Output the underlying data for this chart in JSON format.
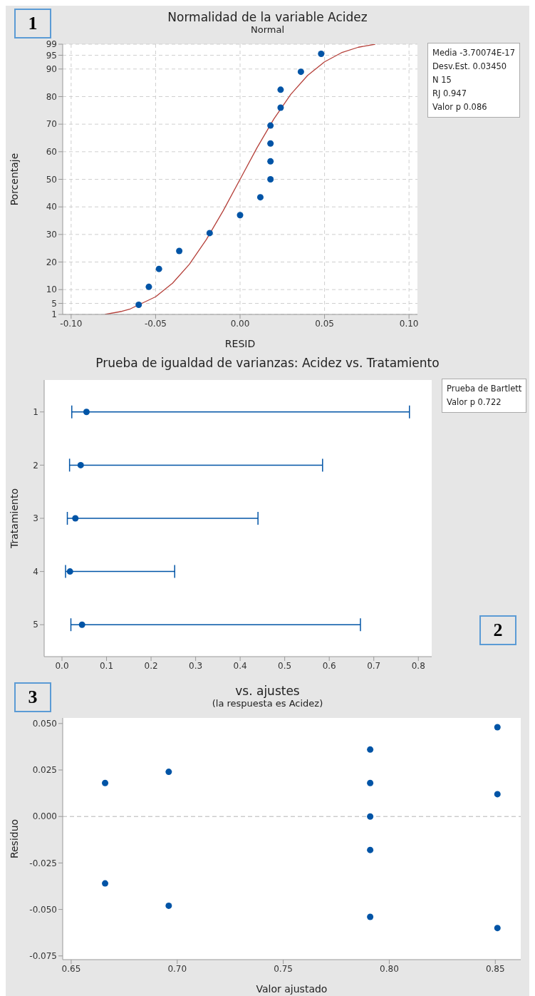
{
  "chart_data": [
    {
      "type": "scatter",
      "title": "Normalidad de la variable Acidez",
      "subtitle": "Normal",
      "xlabel": "RESID",
      "ylabel": "Porcentaje",
      "x": [
        -0.06,
        -0.054,
        -0.048,
        -0.036,
        -0.018,
        0.0,
        0.012,
        0.018,
        0.018,
        0.018,
        0.018,
        0.024,
        0.024,
        0.036,
        0.048
      ],
      "series": [
        {
          "color": "#0054a6",
          "marker": "circle",
          "values": [
            4.5,
            11,
            17.5,
            24,
            30.5,
            37,
            43.5,
            50,
            56.5,
            63,
            69.5,
            76,
            82.5,
            89,
            95.5
          ]
        },
        {
          "type": "line",
          "color": "#b5403a",
          "x": [
            -0.08,
            -0.07,
            -0.065,
            -0.05,
            -0.04,
            -0.03,
            -0.02,
            -0.01,
            0.0,
            0.01,
            0.02,
            0.03,
            0.04,
            0.05,
            0.06,
            0.07,
            0.08
          ],
          "values": [
            1.0,
            2.1,
            3.0,
            7.4,
            12.3,
            19.2,
            28.1,
            38.6,
            50,
            61.4,
            71.9,
            80.8,
            87.7,
            92.6,
            95.9,
            97.9,
            99.0
          ]
        }
      ],
      "xlim": [
        -0.105,
        0.105
      ],
      "xticks": [
        {
          "value": -0.1,
          "label": "-0.10"
        },
        {
          "value": -0.05,
          "label": "-0.05"
        },
        {
          "value": 0,
          "label": "0.00"
        },
        {
          "value": 0.05,
          "label": "0.05"
        },
        {
          "value": 0.1,
          "label": "0.10"
        }
      ],
      "ylim": [
        1,
        99
      ],
      "yticks": [
        1,
        5,
        10,
        20,
        30,
        40,
        50,
        60,
        70,
        80,
        90,
        95,
        99
      ],
      "grid": true,
      "annotations": [
        "1",
        "Media -3.70074E-17",
        "Desv.Est. 0.03450",
        "N 15",
        "RJ 0.947",
        "Valor p 0.086"
      ]
    },
    {
      "type": "scatter",
      "orientation": "horizontal",
      "title": "Prueba de igualdad de varianzas: Acidez vs. Tratamiento",
      "ylabel": "Tratamiento",
      "categories": [
        "1",
        "2",
        "3",
        "4",
        "5"
      ],
      "series": [
        {
          "color": "#0054a6",
          "values": [
            0.055,
            0.042,
            0.03,
            0.018,
            0.045
          ],
          "errors": [
            [
              0.022,
              0.78
            ],
            [
              0.017,
              0.585
            ],
            [
              0.012,
              0.44
            ],
            [
              0.008,
              0.253
            ],
            [
              0.02,
              0.67
            ]
          ]
        }
      ],
      "xlim": [
        -0.04,
        0.83
      ],
      "xticks": [
        {
          "value": 0,
          "label": "0.0"
        },
        {
          "value": 0.1,
          "label": "0.1"
        },
        {
          "value": 0.2,
          "label": "0.2"
        },
        {
          "value": 0.3,
          "label": "0.3"
        },
        {
          "value": 0.4,
          "label": "0.4"
        },
        {
          "value": 0.5,
          "label": "0.5"
        },
        {
          "value": 0.6,
          "label": "0.6"
        },
        {
          "value": 0.7,
          "label": "0.7"
        },
        {
          "value": 0.8,
          "label": "0.8"
        }
      ],
      "marker": "circle",
      "annotations": [
        "2",
        "Prueba de Bartlett",
        "Valor p 0.722"
      ]
    },
    {
      "type": "scatter",
      "title": "vs. ajustes",
      "subtitle": "(la respuesta es Acidez)",
      "xlabel": "Valor ajustado",
      "ylabel": "Residuo",
      "x": [
        0.666,
        0.666,
        0.696,
        0.696,
        0.791,
        0.791,
        0.791,
        0.791,
        0.791,
        0.851,
        0.851,
        0.851
      ],
      "series": [
        {
          "color": "#0054a6",
          "values": [
            0.018,
            -0.036,
            0.024,
            -0.048,
            0.036,
            0.018,
            0.0,
            -0.018,
            -0.054,
            0.048,
            0.012,
            -0.06
          ]
        }
      ],
      "xlim": [
        0.646,
        0.862
      ],
      "xticks": [
        {
          "value": 0.65,
          "label": "0.65"
        },
        {
          "value": 0.7,
          "label": "0.70"
        },
        {
          "value": 0.75,
          "label": "0.75"
        },
        {
          "value": 0.8,
          "label": "0.80"
        },
        {
          "value": 0.85,
          "label": "0.85"
        }
      ],
      "ylim": [
        -0.077,
        0.053
      ],
      "yticks": [
        {
          "value": -0.075,
          "label": "-0.075"
        },
        {
          "value": -0.05,
          "label": "-0.050"
        },
        {
          "value": -0.025,
          "label": "-0.025"
        },
        {
          "value": 0,
          "label": "0.000"
        },
        {
          "value": 0.025,
          "label": "0.025"
        },
        {
          "value": 0.05,
          "label": "0.050"
        }
      ],
      "marker": "circle",
      "ref_lines": [
        {
          "axis": "y",
          "value": 0,
          "color": "#b4b4b4",
          "line_style": "dashed"
        }
      ],
      "annotations": [
        "3"
      ]
    }
  ]
}
